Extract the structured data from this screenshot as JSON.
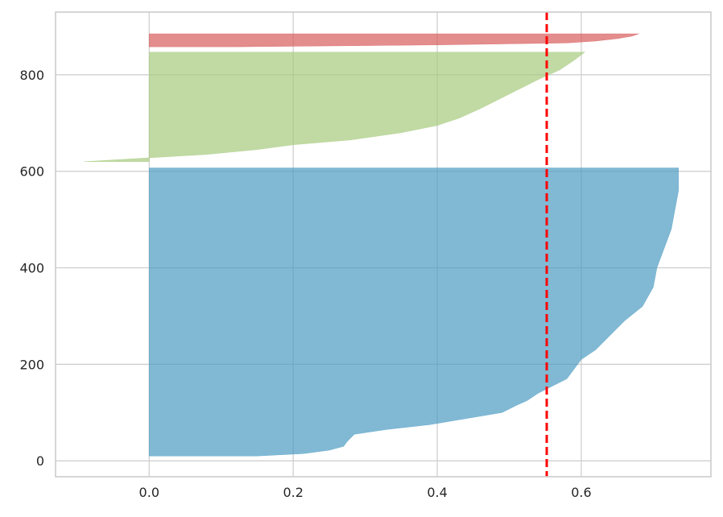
{
  "chart_data": {
    "type": "area",
    "title": "",
    "xlabel": "",
    "ylabel": "",
    "xlim": [
      -0.13,
      0.78
    ],
    "ylim": [
      -33,
      930
    ],
    "x_ticks": [
      {
        "value": 0.0,
        "label": "0.0"
      },
      {
        "value": 0.2,
        "label": "0.2"
      },
      {
        "value": 0.4,
        "label": "0.4"
      },
      {
        "value": 0.6,
        "label": "0.6"
      }
    ],
    "y_ticks": [
      {
        "value": 0,
        "label": "0"
      },
      {
        "value": 200,
        "label": "200"
      },
      {
        "value": 400,
        "label": "400"
      },
      {
        "value": 600,
        "label": "600"
      },
      {
        "value": 800,
        "label": "800"
      }
    ],
    "grid": true,
    "average_line": {
      "x": 0.552,
      "color": "#ff0000",
      "style": "dashed"
    },
    "clusters": [
      {
        "color": "#4c9bc2",
        "y_range": [
          10,
          607
        ],
        "profile": [
          [
            10,
            0.15
          ],
          [
            15,
            0.215
          ],
          [
            22,
            0.25
          ],
          [
            30,
            0.27
          ],
          [
            40,
            0.275
          ],
          [
            55,
            0.285
          ],
          [
            65,
            0.33
          ],
          [
            75,
            0.39
          ],
          [
            85,
            0.43
          ],
          [
            100,
            0.49
          ],
          [
            115,
            0.51
          ],
          [
            125,
            0.525
          ],
          [
            140,
            0.54
          ],
          [
            155,
            0.56
          ],
          [
            170,
            0.58
          ],
          [
            190,
            0.59
          ],
          [
            210,
            0.6
          ],
          [
            230,
            0.62
          ],
          [
            260,
            0.64
          ],
          [
            290,
            0.66
          ],
          [
            320,
            0.685
          ],
          [
            360,
            0.7
          ],
          [
            400,
            0.705
          ],
          [
            440,
            0.715
          ],
          [
            480,
            0.725
          ],
          [
            520,
            0.73
          ],
          [
            560,
            0.735
          ],
          [
            607,
            0.735
          ]
        ]
      },
      {
        "color": "#a7ca7e",
        "y_range": [
          620,
          847
        ],
        "profile": [
          [
            620,
            -0.09
          ],
          [
            628,
            0.0
          ],
          [
            635,
            0.08
          ],
          [
            645,
            0.15
          ],
          [
            655,
            0.2
          ],
          [
            665,
            0.28
          ],
          [
            680,
            0.35
          ],
          [
            695,
            0.4
          ],
          [
            710,
            0.43
          ],
          [
            730,
            0.46
          ],
          [
            760,
            0.5
          ],
          [
            790,
            0.54
          ],
          [
            810,
            0.57
          ],
          [
            830,
            0.59
          ],
          [
            847,
            0.605
          ]
        ]
      },
      {
        "color": "#d75d5b",
        "y_range": [
          858,
          885
        ],
        "profile": [
          [
            858,
            0.12
          ],
          [
            862,
            0.4
          ],
          [
            866,
            0.58
          ],
          [
            870,
            0.62
          ],
          [
            875,
            0.65
          ],
          [
            880,
            0.67
          ],
          [
            885,
            0.68
          ]
        ]
      }
    ]
  }
}
